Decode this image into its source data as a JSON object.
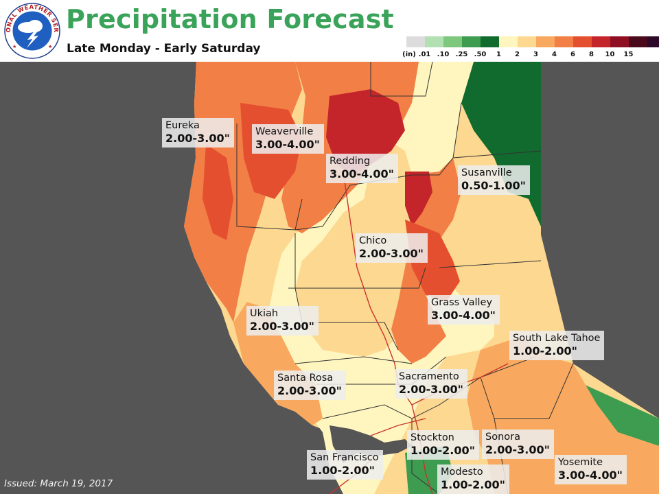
{
  "header": {
    "logo_text": "NATIONAL WEATHER SERVICE",
    "title": "Precipitation Forecast",
    "subtitle": "Late Monday - Early Saturday"
  },
  "legend": {
    "unit_label": "(in)",
    "items": [
      {
        "label": ".01",
        "color": "#dcdcdc"
      },
      {
        "label": ".10",
        "color": "#b3e0b3"
      },
      {
        "label": ".25",
        "color": "#7ec87e"
      },
      {
        "label": ".50",
        "color": "#3d9c4f"
      },
      {
        "label": "1",
        "color": "#116b2e"
      },
      {
        "label": "2",
        "color": "#fff6bf"
      },
      {
        "label": "3",
        "color": "#fcd891"
      },
      {
        "label": "4",
        "color": "#f8a95f"
      },
      {
        "label": "6",
        "color": "#f27f45"
      },
      {
        "label": "8",
        "color": "#e4502f"
      },
      {
        "label": "10",
        "color": "#c4252a"
      },
      {
        "label": "15",
        "color": "#8f0f22"
      },
      {
        "label": "",
        "color": "#4a0a1c"
      },
      {
        "label": "",
        "color": "#2e0a2a"
      }
    ]
  },
  "cities": [
    {
      "name": "Eureka",
      "range": "2.00-3.00\""
    },
    {
      "name": "Weaverville",
      "range": "3.00-4.00\""
    },
    {
      "name": "Redding",
      "range": "3.00-4.00\""
    },
    {
      "name": "Susanville",
      "range": "0.50-1.00\""
    },
    {
      "name": "Chico",
      "range": "2.00-3.00\""
    },
    {
      "name": "Grass Valley",
      "range": "3.00-4.00\""
    },
    {
      "name": "Ukiah",
      "range": "2.00-3.00\""
    },
    {
      "name": "South Lake Tahoe",
      "range": "1.00-2.00\""
    },
    {
      "name": "Santa Rosa",
      "range": "2.00-3.00\""
    },
    {
      "name": "Sacramento",
      "range": "2.00-3.00\""
    },
    {
      "name": "Stockton",
      "range": "1.00-2.00\""
    },
    {
      "name": "Sonora",
      "range": "2.00-3.00\""
    },
    {
      "name": "San Francisco",
      "range": "1.00-2.00\""
    },
    {
      "name": "Modesto",
      "range": "1.00-2.00\""
    },
    {
      "name": "Yosemite",
      "range": "3.00-4.00\""
    }
  ],
  "footer": {
    "issued": "Issued: March 19, 2017"
  }
}
